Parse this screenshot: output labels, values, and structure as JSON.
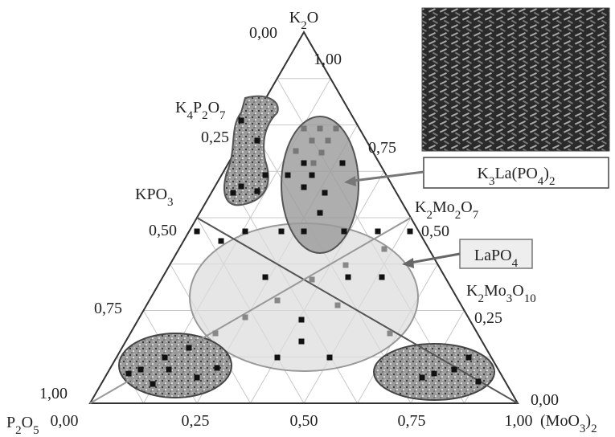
{
  "vertices": {
    "top": [
      "K",
      "2",
      "O"
    ],
    "left": [
      "P",
      "2",
      "O",
      "5"
    ],
    "right": [
      "(MoO",
      "3",
      ")",
      "2"
    ]
  },
  "compounds": [
    [
      "K",
      "4",
      "P",
      "2",
      "O",
      "7"
    ],
    [
      "KPO",
      "3"
    ],
    [
      "K",
      "2",
      "Mo",
      "2",
      "O",
      "7"
    ],
    [
      "K",
      "2",
      "Mo",
      "3",
      "O",
      "10"
    ]
  ],
  "callouts": [
    [
      "K",
      "3",
      "La(PO",
      "4",
      ")",
      "2"
    ],
    [
      "LaPO",
      "4"
    ]
  ],
  "bottom_ticks": [
    "0,00",
    "0,25",
    "0,50",
    "0,75",
    "1,00"
  ],
  "left_ticks": [
    "0,00",
    "0,25",
    "0,50",
    "0,75",
    "1,00"
  ],
  "right_ticks": [
    "1,00",
    "0,75",
    "0,50",
    "0,25",
    "0,00"
  ]
}
